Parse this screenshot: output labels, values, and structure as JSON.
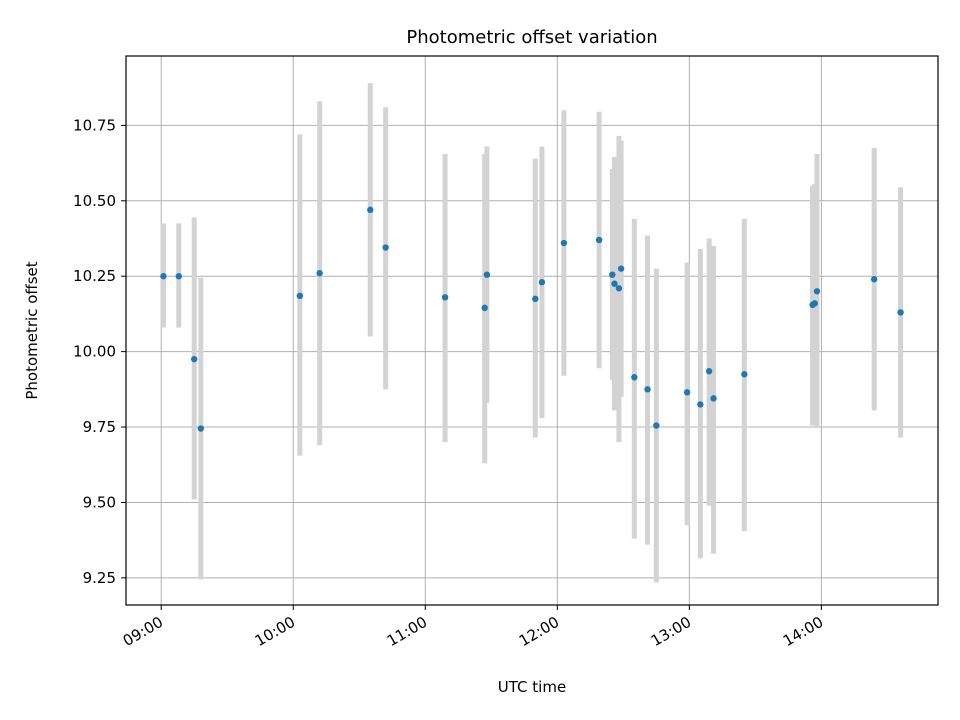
{
  "chart_data": {
    "type": "scatter",
    "title": "Photometric offset variation",
    "xlabel": "UTC time",
    "ylabel": "Photometric offset",
    "x_ticks": [
      "09:00",
      "10:00",
      "11:00",
      "12:00",
      "13:00",
      "14:00"
    ],
    "y_ticks": [
      "9.25",
      "9.50",
      "9.75",
      "10.00",
      "10.25",
      "10.50",
      "10.75"
    ],
    "xlim": [
      "08:44",
      "14:53"
    ],
    "ylim": [
      9.16,
      10.98
    ],
    "grid": true,
    "colors": {
      "point": "#1f77b4",
      "errorbar": "#d3d3d3",
      "grid": "#b0b0b0"
    },
    "series": [
      {
        "points": [
          {
            "x": "09:01",
            "y": 10.25,
            "ylo": 10.08,
            "yhi": 10.425
          },
          {
            "x": "09:08",
            "y": 10.25,
            "ylo": 10.08,
            "yhi": 10.425
          },
          {
            "x": "09:15",
            "y": 9.975,
            "ylo": 9.51,
            "yhi": 10.445
          },
          {
            "x": "09:18",
            "y": 9.745,
            "ylo": 9.245,
            "yhi": 10.245
          },
          {
            "x": "10:03",
            "y": 10.185,
            "ylo": 9.655,
            "yhi": 10.72
          },
          {
            "x": "10:12",
            "y": 10.26,
            "ylo": 9.69,
            "yhi": 10.83
          },
          {
            "x": "10:35",
            "y": 10.47,
            "ylo": 10.05,
            "yhi": 10.89
          },
          {
            "x": "10:42",
            "y": 10.345,
            "ylo": 9.875,
            "yhi": 10.81
          },
          {
            "x": "11:09",
            "y": 10.18,
            "ylo": 9.7,
            "yhi": 10.655
          },
          {
            "x": "11:27",
            "y": 10.145,
            "ylo": 9.63,
            "yhi": 10.655
          },
          {
            "x": "11:28",
            "y": 10.255,
            "ylo": 9.83,
            "yhi": 10.68
          },
          {
            "x": "11:50",
            "y": 10.175,
            "ylo": 9.715,
            "yhi": 10.64
          },
          {
            "x": "11:53",
            "y": 10.23,
            "ylo": 9.78,
            "yhi": 10.68
          },
          {
            "x": "12:03",
            "y": 10.36,
            "ylo": 9.92,
            "yhi": 10.8
          },
          {
            "x": "12:19",
            "y": 10.37,
            "ylo": 9.945,
            "yhi": 10.795
          },
          {
            "x": "12:25",
            "y": 10.255,
            "ylo": 9.905,
            "yhi": 10.605
          },
          {
            "x": "12:26",
            "y": 10.225,
            "ylo": 9.805,
            "yhi": 10.645
          },
          {
            "x": "12:28",
            "y": 10.21,
            "ylo": 9.7,
            "yhi": 10.715
          },
          {
            "x": "12:29",
            "y": 10.275,
            "ylo": 9.85,
            "yhi": 10.7
          },
          {
            "x": "12:35",
            "y": 9.915,
            "ylo": 9.38,
            "yhi": 10.44
          },
          {
            "x": "12:41",
            "y": 9.875,
            "ylo": 9.36,
            "yhi": 10.385
          },
          {
            "x": "12:45",
            "y": 9.755,
            "ylo": 9.235,
            "yhi": 10.275
          },
          {
            "x": "12:59",
            "y": 9.865,
            "ylo": 9.425,
            "yhi": 10.295
          },
          {
            "x": "13:05",
            "y": 9.825,
            "ylo": 9.315,
            "yhi": 10.34
          },
          {
            "x": "13:09",
            "y": 9.935,
            "ylo": 9.49,
            "yhi": 10.375
          },
          {
            "x": "13:11",
            "y": 9.845,
            "ylo": 9.33,
            "yhi": 10.35
          },
          {
            "x": "13:25",
            "y": 9.925,
            "ylo": 9.405,
            "yhi": 10.44
          },
          {
            "x": "13:56",
            "y": 10.155,
            "ylo": 9.755,
            "yhi": 10.55
          },
          {
            "x": "13:57",
            "y": 10.16,
            "ylo": 9.76,
            "yhi": 10.555
          },
          {
            "x": "13:58",
            "y": 10.2,
            "ylo": 9.75,
            "yhi": 10.655
          },
          {
            "x": "14:24",
            "y": 10.24,
            "ylo": 9.805,
            "yhi": 10.675
          },
          {
            "x": "14:36",
            "y": 10.13,
            "ylo": 9.715,
            "yhi": 10.545
          }
        ]
      }
    ]
  }
}
